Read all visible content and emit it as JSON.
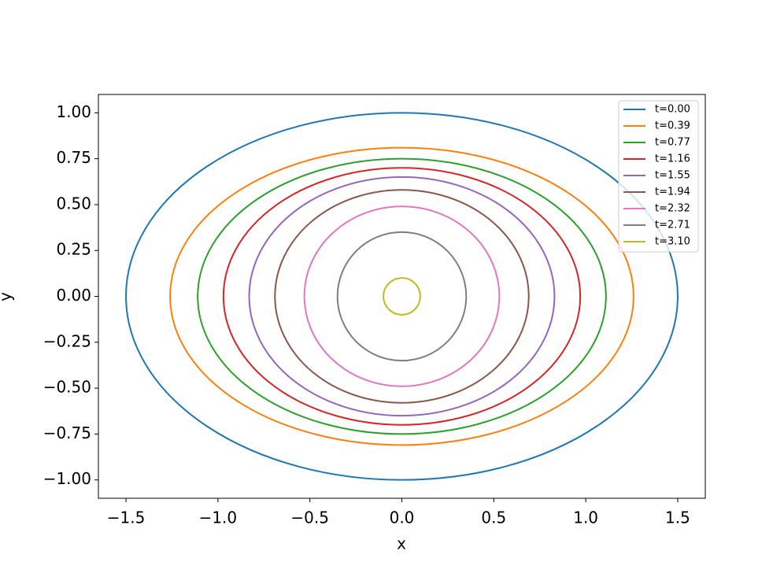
{
  "chart_data": {
    "type": "ellipse",
    "xlabel": "x",
    "ylabel": "y",
    "xlim": [
      -1.65,
      1.65
    ],
    "ylim": [
      -1.1,
      1.1
    ],
    "xticks": [
      {
        "value": -1.5,
        "label": "−1.5"
      },
      {
        "value": -1.0,
        "label": "−1.0"
      },
      {
        "value": -0.5,
        "label": "−0.5"
      },
      {
        "value": 0,
        "label": "0.0"
      },
      0.5,
      {
        "value": 1.0,
        "label": "1.0"
      },
      1.5
    ],
    "yticks": [
      {
        "value": -1.0,
        "label": "−1.00"
      },
      {
        "value": -0.75,
        "label": "−0.75"
      },
      {
        "value": -0.5,
        "label": "−0.50"
      },
      {
        "value": -0.25,
        "label": "−0.25"
      },
      {
        "value": 0,
        "label": "0.00"
      },
      {
        "value": 0.25,
        "label": "0.25"
      },
      {
        "value": 0.5,
        "label": "0.50"
      },
      {
        "value": 0.75,
        "label": "0.75"
      },
      {
        "value": 1.0,
        "label": "1.00"
      }
    ],
    "legend": "upper right",
    "series": [
      {
        "name": "t=0.00",
        "color": "#1f77b4",
        "rx": 1.5,
        "ry": 1.0
      },
      {
        "name": "t=0.39",
        "color": "#ff7f0e",
        "rx": 1.26,
        "ry": 0.81
      },
      {
        "name": "t=0.77",
        "color": "#2ca02c",
        "rx": 1.11,
        "ry": 0.75
      },
      {
        "name": "t=1.16",
        "color": "#d62728",
        "rx": 0.97,
        "ry": 0.7
      },
      {
        "name": "t=1.55",
        "color": "#9467bd",
        "rx": 0.83,
        "ry": 0.65
      },
      {
        "name": "t=1.94",
        "color": "#8c564b",
        "rx": 0.69,
        "ry": 0.58
      },
      {
        "name": "t=2.32",
        "color": "#e377c2",
        "rx": 0.53,
        "ry": 0.49
      },
      {
        "name": "t=2.71",
        "color": "#7f7f7f",
        "rx": 0.35,
        "ry": 0.35
      },
      {
        "name": "t=3.10",
        "color": "#bcbd22",
        "rx": 0.1,
        "ry": 0.1
      }
    ]
  }
}
